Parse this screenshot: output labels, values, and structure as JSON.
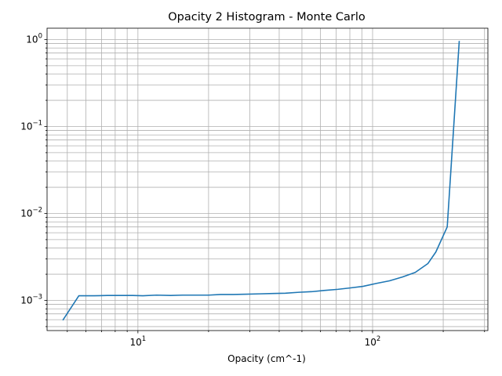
{
  "chart_data": {
    "type": "line",
    "title": "Opacity 2 Histogram - Monte Carlo",
    "xlabel": "Opacity (cm^-1)",
    "ylabel": "",
    "xscale": "log",
    "yscale": "log",
    "xlim": [
      4.1,
      310
    ],
    "ylim": [
      0.00045,
      1.35
    ],
    "grid": "both-major-minor",
    "x_ticks": [
      {
        "value": 10,
        "base": "10",
        "exp": "1"
      },
      {
        "value": 100,
        "base": "10",
        "exp": "2"
      }
    ],
    "y_ticks": [
      {
        "value": 0.001,
        "base": "10",
        "exp": "−3"
      },
      {
        "value": 0.01,
        "base": "10",
        "exp": "−2"
      },
      {
        "value": 0.1,
        "base": "10",
        "exp": "−1"
      },
      {
        "value": 1,
        "base": "10",
        "exp": "0"
      }
    ],
    "series": [
      {
        "color": "#1f77b4",
        "x": [
          4.8,
          5.6,
          6.5,
          7.4,
          8.5,
          9.5,
          10.5,
          12,
          13.8,
          15.5,
          17.5,
          20,
          22.5,
          25.5,
          29,
          33,
          37.5,
          42.5,
          48.5,
          55,
          62,
          71,
          80,
          91,
          104,
          118,
          134,
          152,
          172,
          186,
          208,
          234
        ],
        "y": [
          0.0006,
          0.00113,
          0.00113,
          0.00114,
          0.00114,
          0.00114,
          0.00113,
          0.00115,
          0.00114,
          0.00115,
          0.00115,
          0.00115,
          0.00117,
          0.00117,
          0.00118,
          0.00119,
          0.0012,
          0.00121,
          0.00124,
          0.00126,
          0.0013,
          0.00134,
          0.00139,
          0.00145,
          0.00157,
          0.00168,
          0.00186,
          0.0021,
          0.00265,
          0.0036,
          0.007,
          0.95
        ]
      }
    ]
  }
}
